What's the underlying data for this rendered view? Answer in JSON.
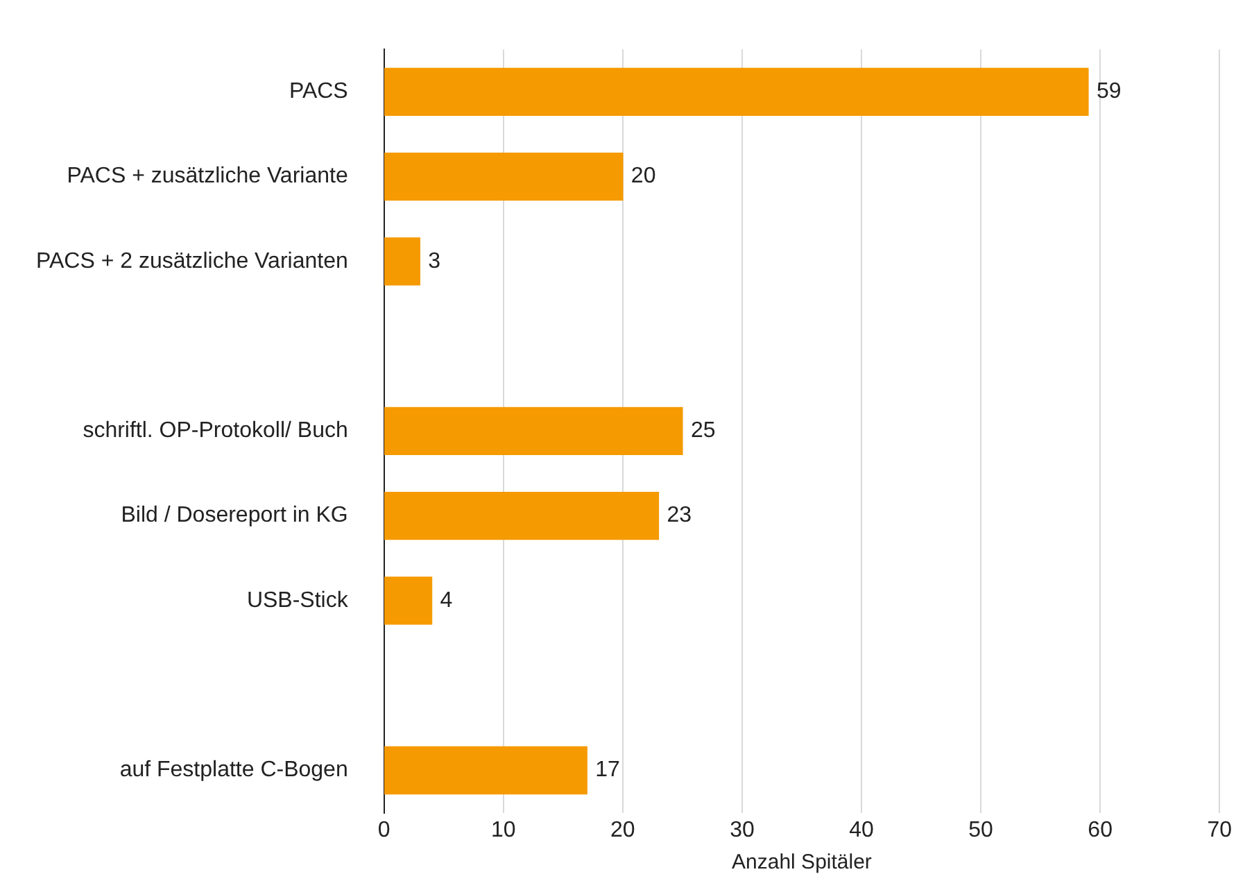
{
  "chart_data": {
    "type": "bar",
    "orientation": "horizontal",
    "xlabel": "Anzahl Spitäler",
    "categories": [
      "PACS",
      "PACS + zusätzliche Variante",
      "PACS + 2 zusätzliche Varianten",
      null,
      "schriftl. OP-Protokoll/ Buch",
      "Bild / Dosereport in KG",
      "USB-Stick",
      null,
      "auf Festplatte C-Bogen"
    ],
    "values": [
      59,
      20,
      3,
      null,
      25,
      23,
      4,
      null,
      17
    ],
    "color": "#f59a00",
    "xlim": [
      0,
      70
    ],
    "xticks": [
      0,
      10,
      20,
      30,
      40,
      50,
      60,
      70
    ],
    "grid": "x",
    "data_labels": true,
    "legend": false
  }
}
